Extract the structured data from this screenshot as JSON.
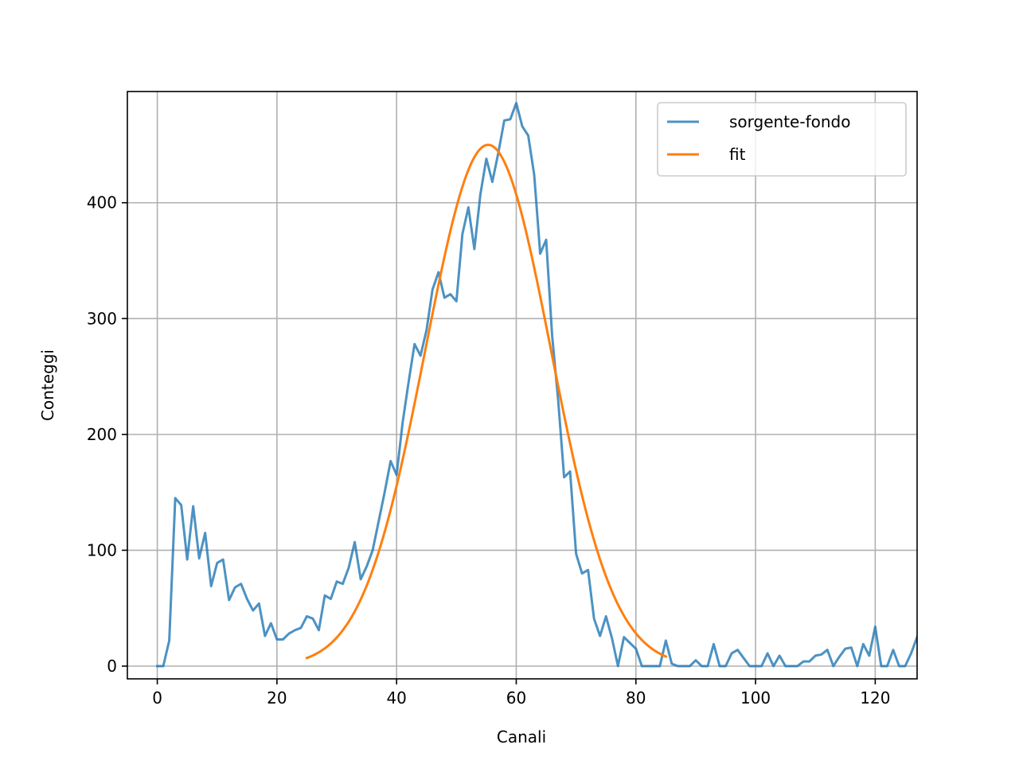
{
  "chart_data": {
    "type": "line",
    "title": "",
    "xlabel": "Canali",
    "ylabel": "Conteggi",
    "xlim": [
      -5,
      127
    ],
    "ylim": [
      -11,
      496
    ],
    "xticks": [
      0,
      20,
      40,
      60,
      80,
      100,
      120
    ],
    "yticks": [
      0,
      100,
      200,
      300,
      400
    ],
    "grid": true,
    "legend_position": "top-right",
    "series": [
      {
        "name": "sorgente-fondo",
        "color": "#1f77b4",
        "x": [
          0,
          1,
          2,
          3,
          4,
          5,
          6,
          7,
          8,
          9,
          10,
          11,
          12,
          13,
          14,
          15,
          16,
          17,
          18,
          19,
          20,
          21,
          22,
          23,
          24,
          25,
          26,
          27,
          28,
          29,
          30,
          31,
          32,
          33,
          34,
          35,
          36,
          37,
          38,
          39,
          40,
          41,
          42,
          43,
          44,
          45,
          46,
          47,
          48,
          49,
          50,
          51,
          52,
          53,
          54,
          55,
          56,
          57,
          58,
          59,
          60,
          61,
          62,
          63,
          64,
          65,
          66,
          67,
          68,
          69,
          70,
          71,
          72,
          73,
          74,
          75,
          76,
          77,
          78,
          79,
          80,
          81,
          82,
          83,
          84,
          85,
          86,
          87,
          88,
          89,
          90,
          91,
          92,
          93,
          94,
          95,
          96,
          97,
          98,
          99,
          100,
          101,
          102,
          103,
          104,
          105,
          106,
          107,
          108,
          109,
          110,
          111,
          112,
          113,
          114,
          115,
          116,
          117,
          118,
          119,
          120,
          121,
          122,
          123,
          124,
          125,
          126,
          127
        ],
        "y": [
          0,
          0,
          22,
          145,
          139,
          92,
          138,
          93,
          115,
          69,
          89,
          92,
          57,
          68,
          71,
          58,
          48,
          54,
          26,
          37,
          23,
          23,
          28,
          31,
          33,
          43,
          41,
          31,
          61,
          58,
          73,
          71,
          85,
          107,
          75,
          86,
          100,
          125,
          150,
          177,
          165,
          210,
          245,
          278,
          268,
          290,
          325,
          340,
          318,
          321,
          315,
          373,
          396,
          360,
          407,
          438,
          418,
          443,
          471,
          472,
          486,
          466,
          458,
          424,
          356,
          368,
          285,
          230,
          163,
          168,
          97,
          80,
          83,
          41,
          26,
          43,
          24,
          0,
          25,
          20,
          15,
          0,
          0,
          0,
          0,
          22,
          2,
          0,
          0,
          0,
          5,
          0,
          0,
          19,
          0,
          0,
          11,
          14,
          7,
          0,
          0,
          0,
          11,
          0,
          9,
          0,
          0,
          0,
          4,
          4,
          9,
          10,
          14,
          0,
          8,
          15,
          16,
          0,
          19,
          9,
          34,
          0,
          0,
          14,
          0,
          0,
          11,
          25
        ]
      },
      {
        "name": "fit",
        "color": "#ff7f0e",
        "type": "gaussian",
        "x_range": [
          25,
          85
        ],
        "amplitude": 450,
        "mean": 55.3,
        "sigma": 10.5
      }
    ]
  }
}
